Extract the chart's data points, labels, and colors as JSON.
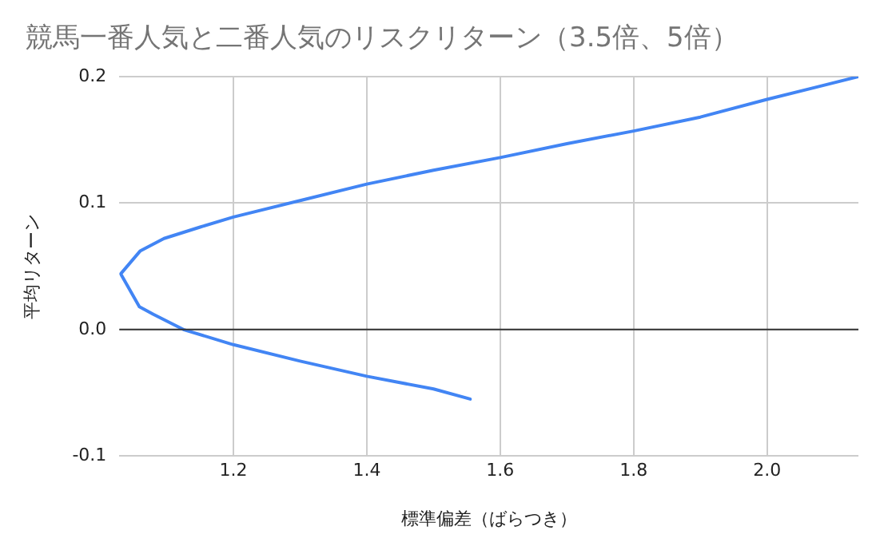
{
  "chart_data": {
    "type": "line",
    "title": "競馬一番人気と二番人気のリスクリターン（3.5倍、5倍）",
    "xlabel": "標準偏差（ばらつき）",
    "ylabel": "平均リターン",
    "series": [
      {
        "color": "#4285f4",
        "x": [
          1.555,
          1.5,
          1.4,
          1.3,
          1.2,
          1.125,
          1.08,
          1.059,
          1.031,
          1.06,
          1.096,
          1.15,
          1.2,
          1.3,
          1.4,
          1.5,
          1.6,
          1.7,
          1.8,
          1.9,
          2.0,
          2.137
        ],
        "values": [
          -0.055,
          -0.047,
          -0.037,
          -0.025,
          -0.012,
          0,
          0.012,
          0.018,
          0.044,
          0.062,
          0.072,
          0.081,
          0.089,
          0.102,
          0.115,
          0.126,
          0.136,
          0.147,
          0.157,
          0.168,
          0.182,
          0.2
        ]
      }
    ],
    "xlim": [
      1.029,
      2.137
    ],
    "xticks": [
      {
        "value": 1.2,
        "label": "1.2"
      },
      {
        "value": 1.4,
        "label": "1.4"
      },
      {
        "value": 1.6,
        "label": "1.6"
      },
      {
        "value": 1.8,
        "label": "1.8"
      },
      {
        "value": 2.0,
        "label": "2.0"
      }
    ],
    "ylim": [
      -0.1,
      0.2
    ],
    "yticks": [
      {
        "value": -0.1,
        "label": "-0.1"
      },
      {
        "value": 0,
        "label": "0.0"
      },
      {
        "value": 0.1,
        "label": "0.1"
      },
      {
        "value": 0.2,
        "label": "0.2"
      }
    ],
    "grid": true,
    "legend": false,
    "marker": "none",
    "line_style": "solid",
    "ref_lines": [
      {
        "axis": "y",
        "value": 0,
        "color": "#333333"
      }
    ]
  }
}
